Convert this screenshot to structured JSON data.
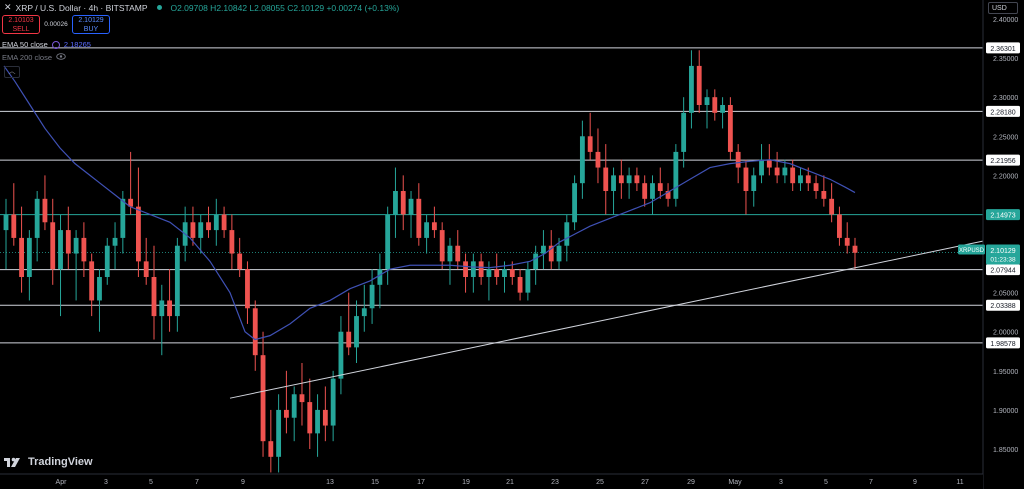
{
  "header": {
    "symbol": "XRP / U.S. Dollar · 4h · BITSTAMP",
    "ohlc": "O2.09708  H2.10842  L2.08055  C2.10129  +0.00274 (+0.13%)"
  },
  "trade": {
    "sell_price": "2.10103",
    "sell_label": "SELL",
    "spread": "0.00026",
    "buy_price": "2.10129",
    "buy_label": "BUY"
  },
  "indicators": {
    "ema50_label": "EMA 50 close",
    "ema50_value": "2.18265",
    "ema200_label": "EMA 200 close"
  },
  "currency_label": "USD",
  "brand": "TradingView",
  "price_tag": {
    "symbol": "XRPUSD",
    "price": "2.10129",
    "countdown": "01:23:38"
  },
  "colors": {
    "up": "#26a69a",
    "down": "#ef5350",
    "ema50": "#3f51b5",
    "hline": "#ffffff",
    "green_tag": "#26a69a",
    "background": "#000000"
  },
  "chart_data": {
    "type": "candlestick",
    "ylim": [
      1.82,
      2.42
    ],
    "y_ticks": [
      "2.40000",
      "2.35000",
      "2.30000",
      "2.25000",
      "2.20000",
      "2.15000",
      "2.10000",
      "2.05000",
      "2.00000",
      "1.95000",
      "1.90000",
      "1.85000"
    ],
    "x_ticks": [
      "Apr",
      "3",
      "5",
      "7",
      "9",
      "13",
      "15",
      "17",
      "19",
      "21",
      "23",
      "25",
      "27",
      "29",
      "May",
      "3",
      "5",
      "7",
      "9",
      "11"
    ],
    "horizontal_levels": [
      {
        "value": 2.36301,
        "label": "2.36301",
        "style": "white"
      },
      {
        "value": 2.2818,
        "label": "2.28180",
        "style": "white"
      },
      {
        "value": 2.21956,
        "label": "2.21956",
        "style": "white"
      },
      {
        "value": 2.14973,
        "label": "2.14973",
        "style": "green"
      },
      {
        "value": 2.07944,
        "label": "2.07944",
        "style": "white"
      },
      {
        "value": 2.03388,
        "label": "2.03388",
        "style": "white"
      },
      {
        "value": 1.98578,
        "label": "1.98578",
        "style": "white"
      }
    ],
    "current_price": 2.10129,
    "trendline": {
      "start": {
        "x": 230,
        "y": 1.915
      },
      "end": {
        "x": 987,
        "y": 2.117
      }
    },
    "ema50_points": [
      [
        4,
        2.34
      ],
      [
        15,
        2.32
      ],
      [
        30,
        2.29
      ],
      [
        45,
        2.26
      ],
      [
        60,
        2.235
      ],
      [
        75,
        2.215
      ],
      [
        90,
        2.2
      ],
      [
        100,
        2.19
      ],
      [
        115,
        2.175
      ],
      [
        130,
        2.16
      ],
      [
        150,
        2.15
      ],
      [
        170,
        2.14
      ],
      [
        190,
        2.12
      ],
      [
        210,
        2.09
      ],
      [
        230,
        2.05
      ],
      [
        245,
        2.0
      ],
      [
        255,
        1.99
      ],
      [
        270,
        1.995
      ],
      [
        290,
        2.01
      ],
      [
        310,
        2.03
      ],
      [
        330,
        2.04
      ],
      [
        350,
        2.055
      ],
      [
        370,
        2.065
      ],
      [
        390,
        2.08
      ],
      [
        410,
        2.085
      ],
      [
        430,
        2.085
      ],
      [
        450,
        2.085
      ],
      [
        470,
        2.083
      ],
      [
        490,
        2.082
      ],
      [
        510,
        2.085
      ],
      [
        530,
        2.09
      ],
      [
        545,
        2.1
      ],
      [
        560,
        2.115
      ],
      [
        575,
        2.125
      ],
      [
        590,
        2.135
      ],
      [
        610,
        2.145
      ],
      [
        630,
        2.155
      ],
      [
        650,
        2.165
      ],
      [
        670,
        2.18
      ],
      [
        690,
        2.195
      ],
      [
        710,
        2.21
      ],
      [
        730,
        2.215
      ],
      [
        750,
        2.218
      ],
      [
        770,
        2.22
      ],
      [
        790,
        2.215
      ],
      [
        810,
        2.205
      ],
      [
        830,
        2.195
      ],
      [
        845,
        2.185
      ],
      [
        855,
        2.178
      ]
    ],
    "candles_source": [
      [
        2.24,
        2.21,
        2.17,
        2.24
      ],
      [
        2.11,
        2.21,
        2.13,
        2.2
      ],
      [
        2.17,
        2.19,
        2.21,
        2.15
      ],
      [
        2.2,
        2.14,
        2.13,
        2.1
      ],
      [
        2.23,
        2.25,
        2.21,
        2.18
      ],
      [
        2.11,
        2.15,
        2.17,
        2.1
      ],
      [
        2.21,
        2.18,
        2.16,
        2.21
      ],
      [
        2.13,
        2.08,
        2.12,
        2.15
      ],
      [
        2.15,
        2.12,
        2.1,
        2.08
      ],
      [
        2.13,
        2.17,
        2.1,
        2.08
      ],
      [
        2.14,
        2.11,
        2.08,
        2.09
      ],
      [
        2.14,
        2.14,
        2.12,
        2.16
      ],
      [
        2.18,
        2.21,
        2.16,
        2.16
      ],
      [
        2.13,
        2.13,
        2.07,
        2.14
      ],
      [
        2.1,
        2.06,
        2.1,
        2.03
      ],
      [
        2.09,
        2.14,
        2.13,
        2.1
      ],
      [
        2.16,
        2.13,
        2.14,
        2.19
      ],
      [
        2.18,
        2.13,
        2.17,
        2.19
      ],
      [
        2.15,
        2.21,
        2.08,
        2.1
      ],
      [
        2.13,
        2.07,
        2.06,
        2.08
      ],
      [
        2.08,
        2.11,
        2.07,
        2.09
      ],
      [
        2.04,
        2.06,
        2.04,
        2.08
      ],
      [
        2.07,
        2.11,
        2.12,
        2.12
      ],
      [
        2.14,
        2.16,
        2.18,
        2.11
      ],
      [
        2.15,
        2.12,
        2.14,
        2.13
      ],
      [
        2.14,
        2.16,
        2.14,
        2.15
      ],
      [
        2.17,
        2.17,
        2.14,
        2.12
      ],
      [
        2.15,
        2.08,
        2.1,
        2.1
      ],
      [
        2.11,
        2.09,
        2.05,
        2.03
      ],
      [
        1.99,
        1.93,
        1.9,
        1.84
      ],
      [
        1.83,
        1.88,
        1.88,
        1.85
      ],
      [
        1.9,
        1.89,
        1.92,
        1.87
      ],
      [
        1.87,
        1.94,
        1.96,
        1.92
      ],
      [
        1.95,
        1.96,
        1.98,
        2.04
      ],
      [
        2.02,
        2.03,
        1.98,
        2.01
      ],
      [
        2.0,
        2.02,
        2.04,
        2.06
      ],
      [
        2.13,
        2.16,
        2.13,
        2.19
      ],
      [
        2.17,
        2.18,
        2.14,
        2.15
      ],
      [
        2.13,
        2.15,
        2.15,
        2.18
      ],
      [
        2.16,
        2.13,
        2.12,
        2.1
      ],
      [
        2.08,
        2.09,
        2.12,
        2.12
      ],
      [
        2.13,
        2.1,
        2.12,
        2.08
      ],
      [
        2.1,
        2.11,
        2.09,
        2.05
      ],
      [
        2.08,
        2.07,
        2.09,
        2.05
      ],
      [
        2.06,
        2.08,
        2.07,
        2.09
      ],
      [
        2.08,
        2.06,
        2.08,
        2.05
      ],
      [
        2.07,
        2.09,
        2.08,
        2.08
      ],
      [
        2.07,
        2.06,
        2.07,
        2.09
      ],
      [
        2.1,
        2.12,
        2.09,
        2.07
      ],
      [
        2.08,
        2.1,
        2.11,
        2.11
      ],
      [
        2.1,
        2.14,
        2.16,
        2.18
      ],
      [
        2.23,
        2.25,
        2.26,
        2.21
      ],
      [
        2.25,
        2.2,
        2.18,
        2.22
      ],
      [
        2.2,
        2.19,
        2.21,
        2.2
      ],
      [
        2.19,
        2.2,
        2.2,
        2.19
      ],
      [
        2.2,
        2.18,
        2.16,
        2.19
      ],
      [
        2.2,
        2.18,
        2.19,
        2.17
      ],
      [
        2.18,
        2.19,
        2.21,
        2.26
      ],
      [
        2.32,
        2.34,
        2.29,
        2.28
      ],
      [
        2.3,
        2.29,
        2.29,
        2.28
      ],
      [
        2.29,
        2.3,
        2.26,
        2.23
      ],
      [
        2.23,
        2.2,
        2.2,
        2.19
      ],
      [
        2.21,
        2.22,
        2.22,
        2.21
      ],
      [
        2.2,
        2.18,
        2.2,
        2.21
      ],
      [
        2.2,
        2.21,
        2.2,
        2.19
      ],
      [
        2.2,
        2.21,
        2.19,
        2.17
      ],
      [
        2.2,
        2.2,
        2.19,
        2.2
      ],
      [
        2.18,
        2.18,
        2.17,
        2.15
      ],
      [
        2.14,
        2.13,
        2.12,
        2.11
      ],
      [
        2.11,
        2.1,
        2.1,
        2.1
      ]
    ],
    "candles": [
      [
        2.13,
        2.17,
        2.08,
        2.15
      ],
      [
        2.15,
        2.19,
        2.11,
        2.12
      ],
      [
        2.12,
        2.16,
        2.05,
        2.07
      ],
      [
        2.07,
        2.13,
        2.04,
        2.12
      ],
      [
        2.12,
        2.18,
        2.09,
        2.17
      ],
      [
        2.17,
        2.2,
        2.13,
        2.14
      ],
      [
        2.14,
        2.17,
        2.06,
        2.08
      ],
      [
        2.08,
        2.15,
        2.02,
        2.13
      ],
      [
        2.13,
        2.16,
        2.08,
        2.1
      ],
      [
        2.1,
        2.13,
        2.04,
        2.12
      ],
      [
        2.12,
        2.14,
        2.07,
        2.09
      ],
      [
        2.09,
        2.1,
        2.02,
        2.04
      ],
      [
        2.04,
        2.08,
        2.0,
        2.07
      ],
      [
        2.07,
        2.12,
        2.06,
        2.11
      ],
      [
        2.11,
        2.14,
        2.08,
        2.12
      ],
      [
        2.12,
        2.18,
        2.1,
        2.17
      ],
      [
        2.17,
        2.23,
        2.15,
        2.16
      ],
      [
        2.16,
        2.21,
        2.07,
        2.09
      ],
      [
        2.09,
        2.12,
        2.06,
        2.07
      ],
      [
        2.07,
        2.11,
        1.99,
        2.02
      ],
      [
        2.02,
        2.06,
        1.97,
        2.04
      ],
      [
        2.04,
        2.08,
        2.0,
        2.02
      ],
      [
        2.02,
        2.12,
        2.0,
        2.11
      ],
      [
        2.11,
        2.16,
        2.09,
        2.14
      ],
      [
        2.14,
        2.16,
        2.11,
        2.12
      ],
      [
        2.12,
        2.15,
        2.1,
        2.14
      ],
      [
        2.14,
        2.16,
        2.12,
        2.13
      ],
      [
        2.13,
        2.17,
        2.11,
        2.15
      ],
      [
        2.15,
        2.16,
        2.12,
        2.13
      ],
      [
        2.13,
        2.15,
        2.08,
        2.1
      ],
      [
        2.1,
        2.12,
        2.07,
        2.08
      ],
      [
        2.08,
        2.09,
        2.01,
        2.03
      ],
      [
        2.03,
        2.04,
        1.95,
        1.97
      ],
      [
        1.97,
        2.0,
        1.84,
        1.86
      ],
      [
        1.86,
        1.9,
        1.82,
        1.84
      ],
      [
        1.84,
        1.92,
        1.82,
        1.9
      ],
      [
        1.9,
        1.95,
        1.87,
        1.89
      ],
      [
        1.89,
        1.93,
        1.86,
        1.92
      ],
      [
        1.92,
        1.96,
        1.88,
        1.91
      ],
      [
        1.91,
        1.94,
        1.85,
        1.87
      ],
      [
        1.87,
        1.92,
        1.84,
        1.9
      ],
      [
        1.9,
        1.93,
        1.86,
        1.88
      ],
      [
        1.88,
        1.95,
        1.86,
        1.94
      ],
      [
        1.94,
        2.02,
        1.92,
        2.0
      ],
      [
        2.0,
        2.05,
        1.97,
        1.98
      ],
      [
        1.98,
        2.04,
        1.96,
        2.02
      ],
      [
        2.02,
        2.06,
        2.0,
        2.03
      ],
      [
        2.03,
        2.08,
        2.01,
        2.06
      ],
      [
        2.06,
        2.1,
        2.03,
        2.08
      ],
      [
        2.08,
        2.16,
        2.06,
        2.15
      ],
      [
        2.15,
        2.21,
        2.12,
        2.18
      ],
      [
        2.18,
        2.2,
        2.13,
        2.15
      ],
      [
        2.15,
        2.18,
        2.12,
        2.17
      ],
      [
        2.17,
        2.19,
        2.11,
        2.12
      ],
      [
        2.12,
        2.15,
        2.1,
        2.14
      ],
      [
        2.14,
        2.16,
        2.12,
        2.13
      ],
      [
        2.13,
        2.14,
        2.08,
        2.09
      ],
      [
        2.09,
        2.12,
        2.06,
        2.11
      ],
      [
        2.11,
        2.13,
        2.08,
        2.09
      ],
      [
        2.09,
        2.1,
        2.05,
        2.07
      ],
      [
        2.07,
        2.1,
        2.05,
        2.09
      ],
      [
        2.09,
        2.1,
        2.06,
        2.07
      ],
      [
        2.07,
        2.09,
        2.04,
        2.08
      ],
      [
        2.08,
        2.1,
        2.06,
        2.07
      ],
      [
        2.07,
        2.09,
        2.05,
        2.08
      ],
      [
        2.08,
        2.09,
        2.06,
        2.07
      ],
      [
        2.07,
        2.08,
        2.04,
        2.05
      ],
      [
        2.05,
        2.09,
        2.04,
        2.08
      ],
      [
        2.08,
        2.11,
        2.06,
        2.1
      ],
      [
        2.1,
        2.13,
        2.08,
        2.11
      ],
      [
        2.11,
        2.13,
        2.08,
        2.09
      ],
      [
        2.09,
        2.12,
        2.08,
        2.11
      ],
      [
        2.11,
        2.15,
        2.09,
        2.14
      ],
      [
        2.14,
        2.2,
        2.13,
        2.19
      ],
      [
        2.19,
        2.27,
        2.17,
        2.25
      ],
      [
        2.25,
        2.28,
        2.22,
        2.23
      ],
      [
        2.23,
        2.26,
        2.19,
        2.21
      ],
      [
        2.21,
        2.24,
        2.15,
        2.18
      ],
      [
        2.18,
        2.21,
        2.15,
        2.2
      ],
      [
        2.2,
        2.22,
        2.17,
        2.19
      ],
      [
        2.19,
        2.21,
        2.17,
        2.2
      ],
      [
        2.2,
        2.21,
        2.18,
        2.19
      ],
      [
        2.19,
        2.2,
        2.16,
        2.17
      ],
      [
        2.17,
        2.2,
        2.15,
        2.19
      ],
      [
        2.19,
        2.21,
        2.17,
        2.18
      ],
      [
        2.18,
        2.19,
        2.16,
        2.17
      ],
      [
        2.17,
        2.24,
        2.16,
        2.23
      ],
      [
        2.23,
        2.3,
        2.21,
        2.28
      ],
      [
        2.28,
        2.36,
        2.26,
        2.34
      ],
      [
        2.34,
        2.36,
        2.28,
        2.29
      ],
      [
        2.29,
        2.31,
        2.26,
        2.3
      ],
      [
        2.3,
        2.31,
        2.27,
        2.28
      ],
      [
        2.28,
        2.3,
        2.26,
        2.29
      ],
      [
        2.29,
        2.3,
        2.22,
        2.23
      ],
      [
        2.23,
        2.24,
        2.19,
        2.21
      ],
      [
        2.21,
        2.22,
        2.15,
        2.18
      ],
      [
        2.18,
        2.21,
        2.16,
        2.2
      ],
      [
        2.2,
        2.24,
        2.19,
        2.22
      ],
      [
        2.22,
        2.24,
        2.2,
        2.21
      ],
      [
        2.21,
        2.23,
        2.19,
        2.2
      ],
      [
        2.2,
        2.22,
        2.19,
        2.21
      ],
      [
        2.21,
        2.22,
        2.18,
        2.19
      ],
      [
        2.19,
        2.21,
        2.18,
        2.2
      ],
      [
        2.2,
        2.21,
        2.18,
        2.19
      ],
      [
        2.19,
        2.2,
        2.17,
        2.18
      ],
      [
        2.18,
        2.2,
        2.16,
        2.17
      ],
      [
        2.17,
        2.19,
        2.14,
        2.15
      ],
      [
        2.15,
        2.16,
        2.11,
        2.12
      ],
      [
        2.12,
        2.14,
        2.1,
        2.11
      ],
      [
        2.11,
        2.12,
        2.08,
        2.101
      ]
    ]
  }
}
